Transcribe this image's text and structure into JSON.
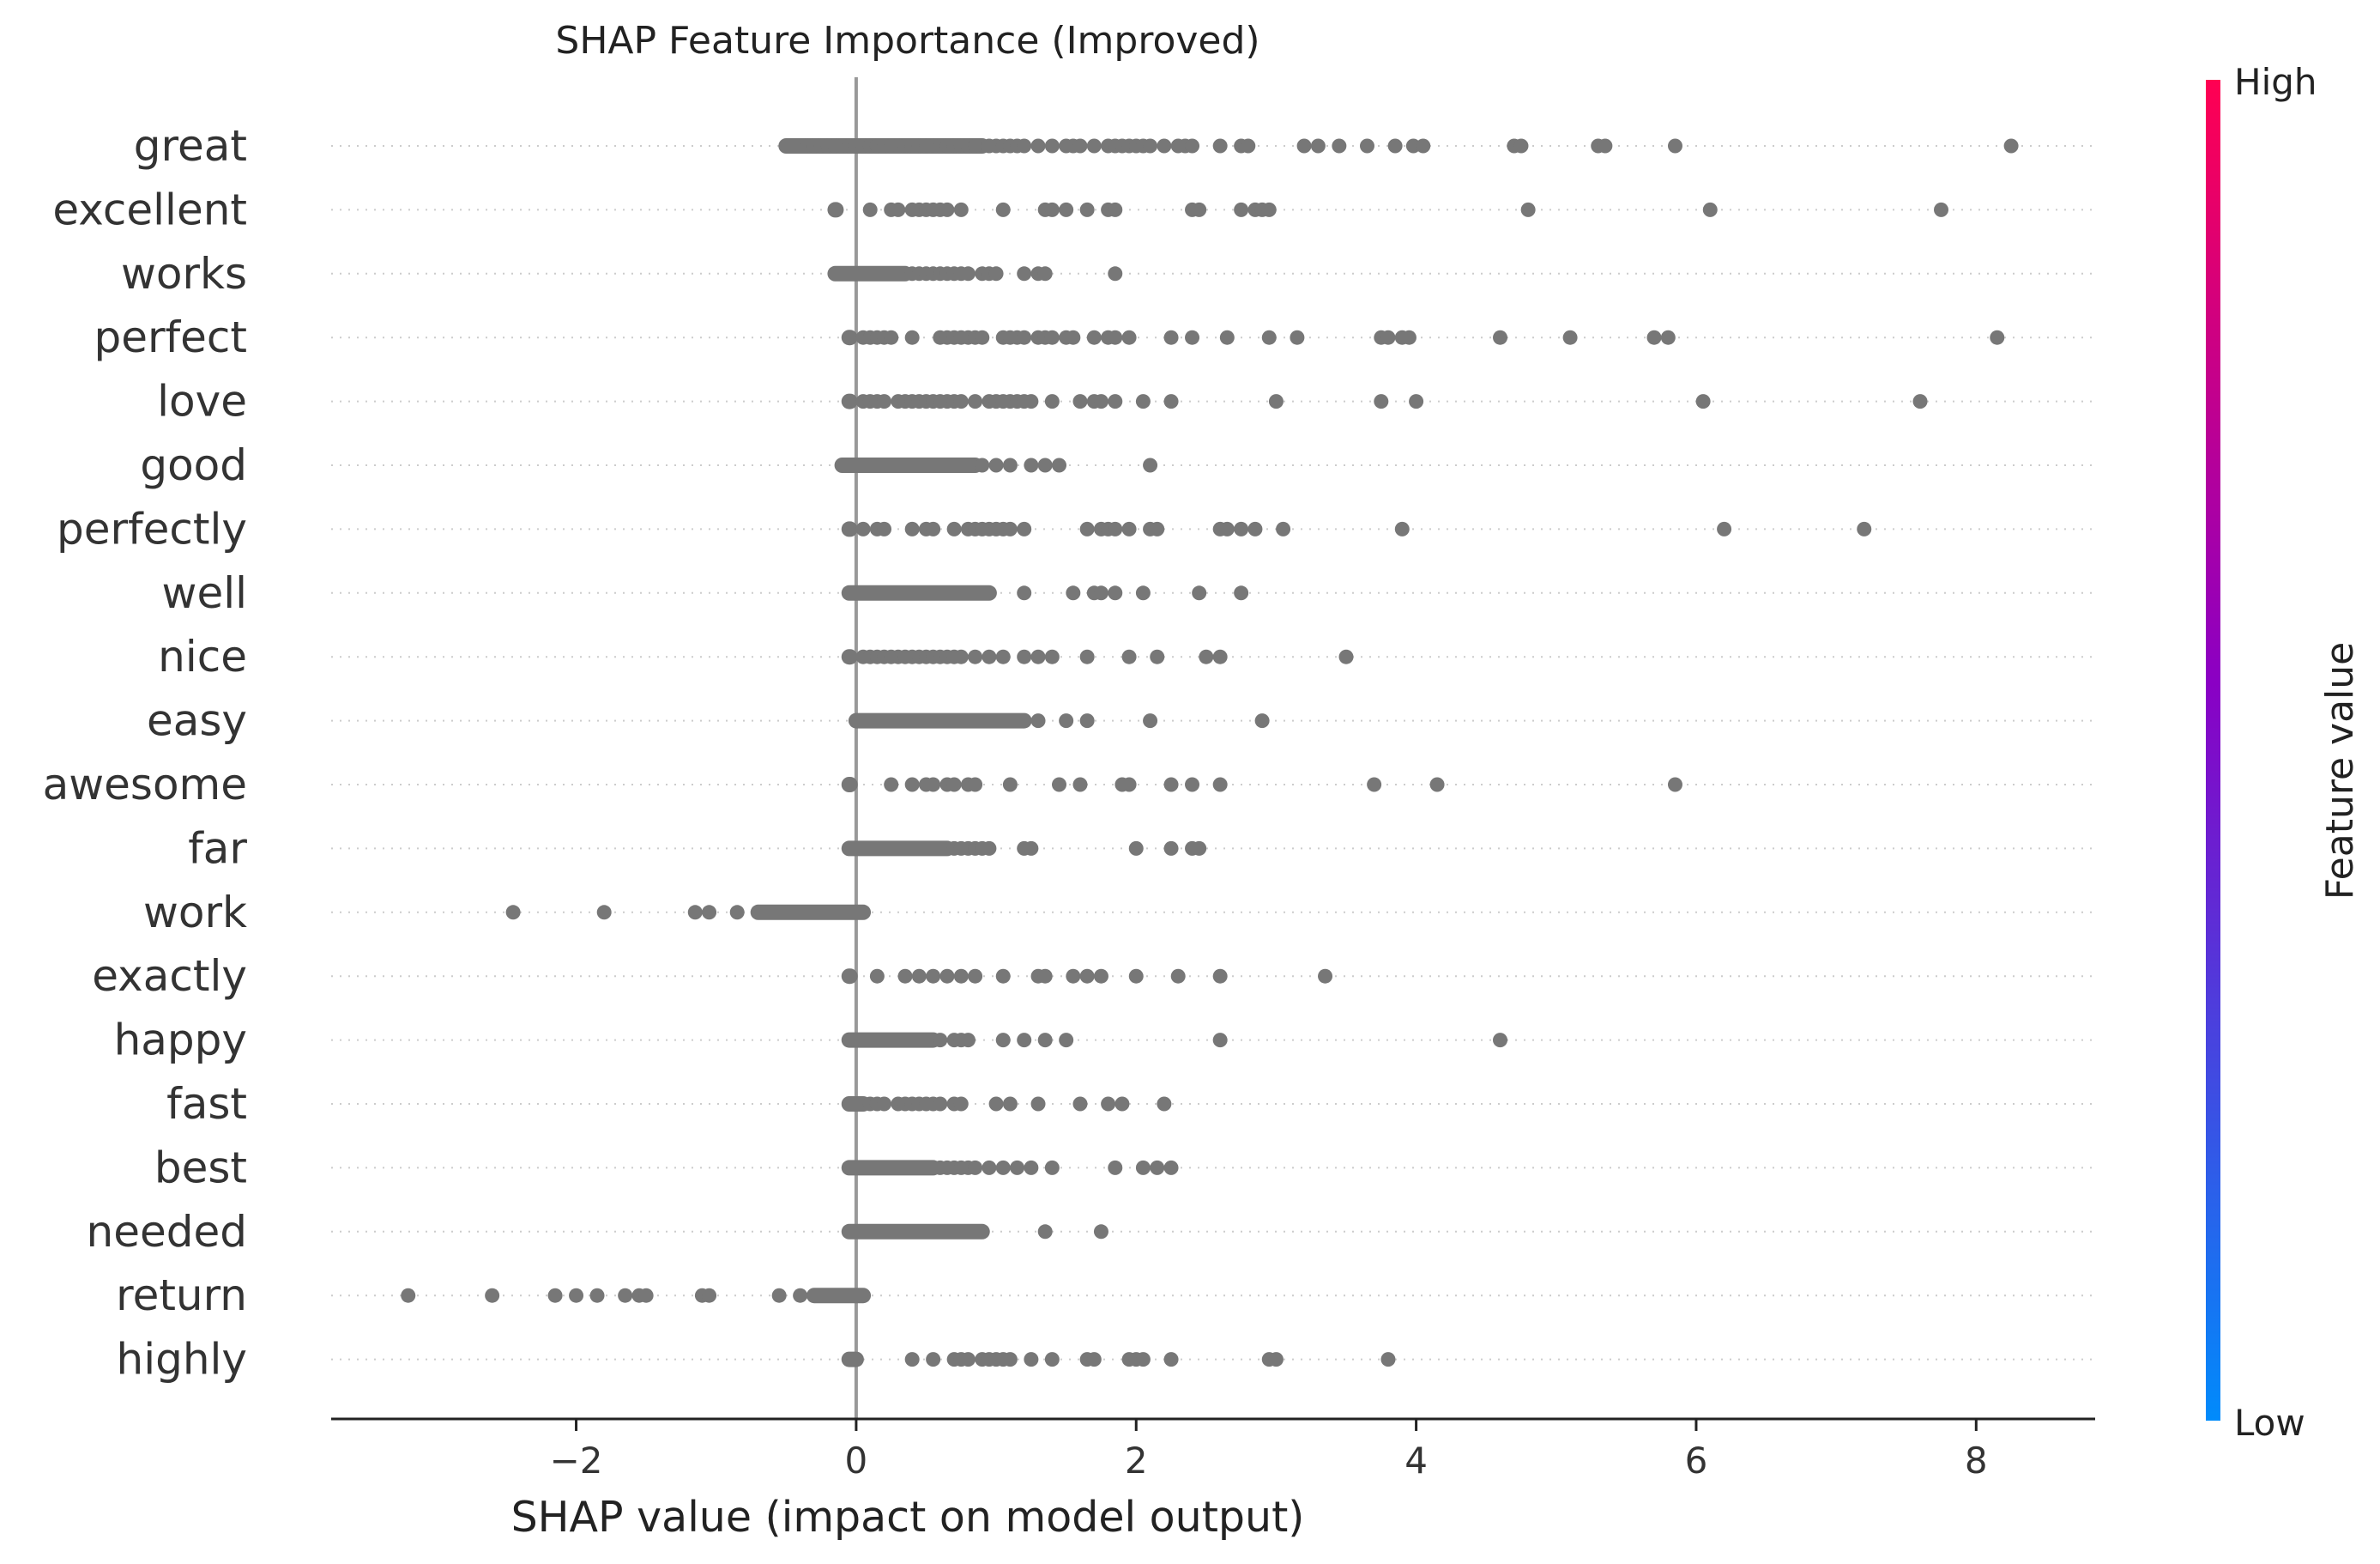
{
  "chart_data": {
    "type": "scatter",
    "subtype": "shap-beeswarm-summary",
    "title": "SHAP Feature Importance (Improved)",
    "xlabel": "SHAP value (impact on model output)",
    "xlim": [
      -3.75,
      8.85
    ],
    "xticks": [
      -2,
      0,
      2,
      4,
      6,
      8
    ],
    "xtick_labels": [
      "−2",
      "0",
      "2",
      "4",
      "6",
      "8"
    ],
    "grid": false,
    "point_color": "#777777",
    "zero_line_color": "#999999",
    "colorbar": {
      "label": "Feature value",
      "high_label": "High",
      "low_label": "Low",
      "high_color": "#ff0052",
      "mid_color": "#8a00c4",
      "low_color": "#008bfb"
    },
    "features": [
      {
        "name": "great",
        "dense": [
          -0.5,
          0.9
        ],
        "points": [
          -0.35,
          -0.3,
          -0.25,
          -0.2,
          -0.15,
          -0.1,
          -0.05,
          0,
          0.05,
          0.1,
          0.15,
          0.2,
          0.25,
          0.3,
          0.35,
          0.4,
          0.45,
          0.5,
          0.55,
          0.6,
          0.65,
          0.7,
          0.75,
          0.8,
          0.85,
          0.95,
          1.0,
          1.05,
          1.1,
          1.15,
          1.2,
          1.3,
          1.4,
          1.5,
          1.55,
          1.6,
          1.7,
          1.8,
          1.85,
          1.9,
          1.95,
          2.0,
          2.05,
          2.1,
          2.2,
          2.3,
          2.35,
          2.4,
          2.6,
          2.75,
          2.8,
          3.2,
          3.3,
          3.45,
          3.65,
          3.85,
          3.98,
          4.05,
          4.7,
          4.75,
          5.3,
          5.35,
          5.85,
          8.25
        ]
      },
      {
        "name": "excellent",
        "dense": [
          -0.15,
          -0.15
        ],
        "points": [
          0.1,
          0.25,
          0.3,
          0.4,
          0.45,
          0.5,
          0.55,
          0.6,
          0.65,
          0.75,
          1.05,
          1.35,
          1.4,
          1.5,
          1.65,
          1.8,
          1.85,
          2.4,
          2.45,
          2.75,
          2.85,
          2.9,
          2.95,
          4.8,
          6.1,
          7.75
        ]
      },
      {
        "name": "works",
        "dense": [
          -0.15,
          0.35
        ],
        "points": [
          0.4,
          0.45,
          0.5,
          0.55,
          0.6,
          0.65,
          0.7,
          0.75,
          0.8,
          0.9,
          0.95,
          1.0,
          1.2,
          1.3,
          1.35,
          1.85
        ]
      },
      {
        "name": "perfect",
        "dense": [
          -0.05,
          -0.05
        ],
        "points": [
          0.05,
          0.1,
          0.15,
          0.2,
          0.25,
          0.4,
          0.6,
          0.65,
          0.7,
          0.75,
          0.8,
          0.85,
          0.9,
          1.05,
          1.1,
          1.15,
          1.2,
          1.3,
          1.35,
          1.4,
          1.5,
          1.55,
          1.7,
          1.8,
          1.85,
          1.95,
          2.25,
          2.4,
          2.65,
          2.95,
          3.15,
          3.75,
          3.8,
          3.9,
          3.95,
          4.6,
          5.1,
          5.7,
          5.8,
          8.15
        ]
      },
      {
        "name": "love",
        "dense": [
          -0.05,
          -0.05
        ],
        "points": [
          0.05,
          0.1,
          0.15,
          0.2,
          0.3,
          0.35,
          0.4,
          0.45,
          0.5,
          0.55,
          0.6,
          0.65,
          0.7,
          0.75,
          0.85,
          0.95,
          1.0,
          1.05,
          1.1,
          1.15,
          1.2,
          1.25,
          1.4,
          1.6,
          1.7,
          1.75,
          1.85,
          2.05,
          2.25,
          3.0,
          3.75,
          4.0,
          6.05,
          7.6
        ]
      },
      {
        "name": "good",
        "dense": [
          -0.1,
          0.85
        ],
        "points": [
          0.9,
          1.0,
          1.1,
          1.25,
          1.35,
          1.45,
          2.1
        ]
      },
      {
        "name": "perfectly",
        "dense": [
          -0.05,
          -0.05
        ],
        "points": [
          0.05,
          0.15,
          0.2,
          0.4,
          0.5,
          0.55,
          0.7,
          0.8,
          0.85,
          0.9,
          0.95,
          1.0,
          1.05,
          1.1,
          1.2,
          1.65,
          1.75,
          1.8,
          1.85,
          1.95,
          2.1,
          2.15,
          2.6,
          2.65,
          2.75,
          2.85,
          3.05,
          3.9,
          6.2,
          7.2
        ]
      },
      {
        "name": "well",
        "dense": [
          -0.05,
          0.95
        ],
        "points": [
          1.2,
          1.55,
          1.7,
          1.75,
          1.85,
          2.05,
          2.45,
          2.75
        ]
      },
      {
        "name": "nice",
        "dense": [
          -0.05,
          -0.05
        ],
        "points": [
          0.05,
          0.1,
          0.15,
          0.2,
          0.25,
          0.3,
          0.35,
          0.4,
          0.45,
          0.5,
          0.55,
          0.6,
          0.65,
          0.7,
          0.75,
          0.85,
          0.95,
          1.05,
          1.2,
          1.3,
          1.4,
          1.65,
          1.95,
          2.15,
          2.5,
          2.6,
          3.5
        ]
      },
      {
        "name": "easy",
        "dense": [
          0.0,
          1.2
        ],
        "points": [
          1.3,
          1.5,
          1.65,
          2.1,
          2.9
        ]
      },
      {
        "name": "awesome",
        "dense": [
          -0.05,
          -0.05
        ],
        "points": [
          0.25,
          0.4,
          0.5,
          0.55,
          0.65,
          0.7,
          0.8,
          0.85,
          1.1,
          1.45,
          1.6,
          1.9,
          1.95,
          2.25,
          2.4,
          2.6,
          3.7,
          4.15,
          5.85
        ]
      },
      {
        "name": "far",
        "dense": [
          -0.05,
          0.65
        ],
        "points": [
          0.7,
          0.75,
          0.8,
          0.85,
          0.9,
          0.95,
          1.2,
          1.25,
          2.0,
          2.25,
          2.4,
          2.45
        ]
      },
      {
        "name": "work",
        "dense": [
          -0.7,
          0.05
        ],
        "points": [
          -2.45,
          -1.8,
          -1.15,
          -1.05,
          -0.85
        ]
      },
      {
        "name": "exactly",
        "dense": [
          -0.05,
          -0.05
        ],
        "points": [
          0.15,
          0.35,
          0.45,
          0.55,
          0.65,
          0.75,
          0.85,
          1.05,
          1.3,
          1.35,
          1.55,
          1.65,
          1.75,
          2.0,
          2.3,
          2.6,
          3.35
        ]
      },
      {
        "name": "happy",
        "dense": [
          -0.05,
          0.55
        ],
        "points": [
          0.6,
          0.7,
          0.75,
          0.8,
          1.05,
          1.2,
          1.35,
          1.5,
          2.6,
          4.6
        ]
      },
      {
        "name": "fast",
        "dense": [
          -0.05,
          0.05
        ],
        "points": [
          0.1,
          0.15,
          0.2,
          0.3,
          0.35,
          0.4,
          0.45,
          0.5,
          0.55,
          0.6,
          0.7,
          0.75,
          1.0,
          1.1,
          1.3,
          1.6,
          1.8,
          1.9,
          2.2
        ]
      },
      {
        "name": "best",
        "dense": [
          -0.05,
          0.55
        ],
        "points": [
          0.6,
          0.65,
          0.7,
          0.75,
          0.8,
          0.85,
          0.95,
          1.05,
          1.15,
          1.25,
          1.4,
          1.85,
          2.05,
          2.15,
          2.25
        ]
      },
      {
        "name": "needed",
        "dense": [
          -0.05,
          0.9
        ],
        "points": [
          1.35,
          1.75
        ]
      },
      {
        "name": "return",
        "dense": [
          -0.3,
          0.05
        ],
        "points": [
          -3.2,
          -2.6,
          -2.15,
          -2.0,
          -1.85,
          -1.65,
          -1.55,
          -1.5,
          -1.1,
          -1.05,
          -0.55,
          -0.4
        ]
      },
      {
        "name": "highly",
        "dense": [
          -0.05,
          0.0
        ],
        "points": [
          0.4,
          0.55,
          0.7,
          0.75,
          0.8,
          0.9,
          0.95,
          1.0,
          1.05,
          1.1,
          1.25,
          1.4,
          1.65,
          1.7,
          1.95,
          2.0,
          2.05,
          2.25,
          2.95,
          3.0,
          3.8
        ]
      }
    ]
  }
}
